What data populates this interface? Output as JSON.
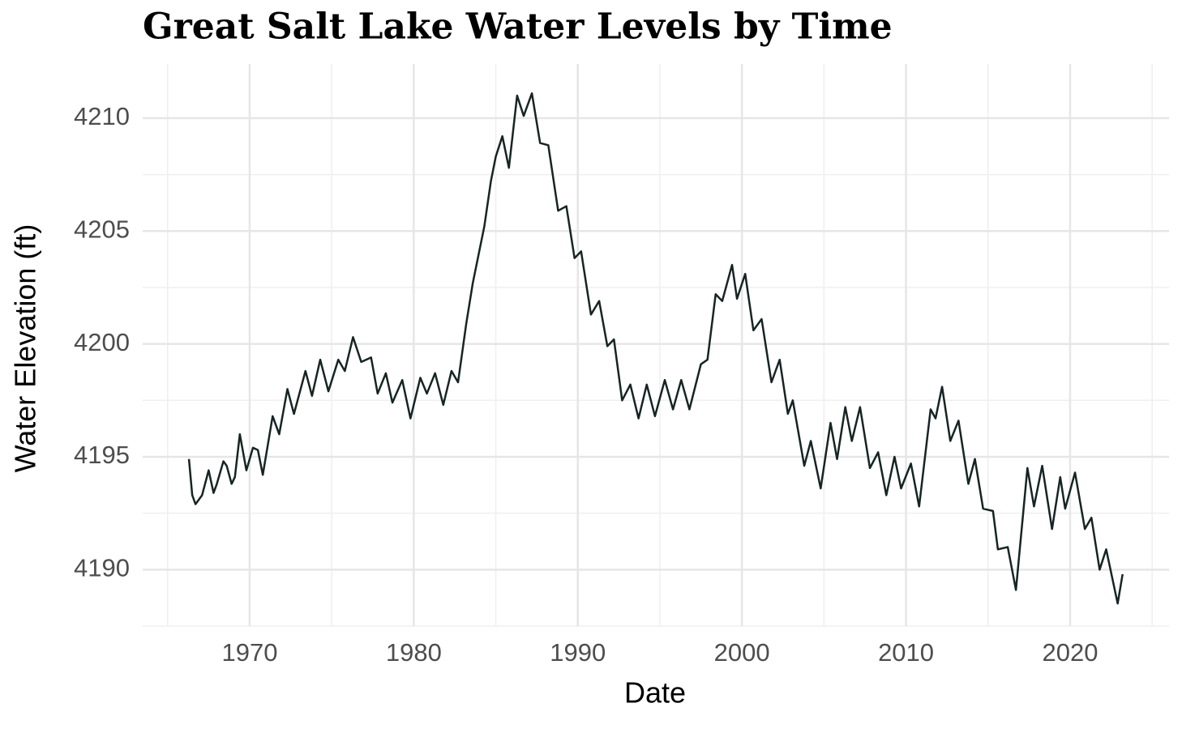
{
  "chart_data": {
    "type": "line",
    "title": "Great Salt Lake Water Levels by Time",
    "x_label": "Date",
    "y_label": "Water Elevation (ft)",
    "xlim": [
      1963.48,
      2026.03
    ],
    "ylim": [
      4187.5,
      4212.4
    ],
    "xticks": [
      1970,
      1980,
      1990,
      2000,
      2010,
      2020
    ],
    "yticks": [
      4190,
      4195,
      4200,
      4205,
      4210
    ],
    "x_minor_grid": [
      1965,
      1975,
      1985,
      1995,
      2005,
      2015,
      2025
    ],
    "y_minor_grid": [
      4187.5,
      4192.5,
      4197.5,
      4202.5,
      4207.5
    ],
    "grid": true,
    "series": [
      {
        "name": "Water Elevation",
        "color": "#162524",
        "x": [
          1966.3,
          1966.5,
          1966.7,
          1967.1,
          1967.5,
          1967.8,
          1968.0,
          1968.4,
          1968.6,
          1968.9,
          1969.1,
          1969.4,
          1969.8,
          1970.2,
          1970.5,
          1970.8,
          1971.1,
          1971.4,
          1971.8,
          1972.3,
          1972.7,
          1973.4,
          1973.8,
          1974.3,
          1974.8,
          1975.4,
          1975.8,
          1976.3,
          1976.8,
          1977.4,
          1977.8,
          1978.3,
          1978.7,
          1979.3,
          1979.8,
          1980.4,
          1980.8,
          1981.3,
          1981.8,
          1982.3,
          1982.7,
          1983.2,
          1983.6,
          1984.3,
          1984.7,
          1985.0,
          1985.4,
          1985.8,
          1986.3,
          1986.7,
          1987.2,
          1987.7,
          1988.2,
          1988.8,
          1989.3,
          1989.8,
          1990.2,
          1990.8,
          1991.3,
          1991.8,
          1992.2,
          1992.7,
          1993.2,
          1993.7,
          1994.2,
          1994.7,
          1995.3,
          1995.8,
          1996.3,
          1996.8,
          1997.5,
          1997.9,
          1998.4,
          1998.8,
          1999.4,
          1999.7,
          2000.2,
          2000.7,
          2001.2,
          2001.8,
          2002.3,
          2002.8,
          2003.1,
          2003.8,
          2004.2,
          2004.8,
          2005.4,
          2005.8,
          2006.3,
          2006.7,
          2007.2,
          2007.8,
          2008.3,
          2008.8,
          2009.3,
          2009.7,
          2010.3,
          2010.8,
          2011.5,
          2011.8,
          2012.2,
          2012.7,
          2013.2,
          2013.8,
          2014.2,
          2014.7,
          2015.3,
          2015.6,
          2016.2,
          2016.7,
          2017.4,
          2017.8,
          2018.3,
          2018.9,
          2019.4,
          2019.7,
          2020.3,
          2020.9,
          2021.3,
          2021.8,
          2022.2,
          2022.9,
          2023.2
        ],
        "values": [
          4194.9,
          4193.3,
          4192.9,
          4193.3,
          4194.4,
          4193.4,
          4193.8,
          4194.8,
          4194.6,
          4193.8,
          4194.1,
          4196.0,
          4194.4,
          4195.4,
          4195.3,
          4194.2,
          4195.5,
          4196.8,
          4196.0,
          4198.0,
          4196.9,
          4198.8,
          4197.7,
          4199.3,
          4197.9,
          4199.3,
          4198.8,
          4200.3,
          4199.2,
          4199.4,
          4197.8,
          4198.7,
          4197.4,
          4198.4,
          4196.7,
          4198.5,
          4197.8,
          4198.7,
          4197.3,
          4198.8,
          4198.3,
          4200.9,
          4202.7,
          4205.2,
          4207.2,
          4208.3,
          4209.2,
          4207.8,
          4211.0,
          4210.1,
          4211.1,
          4208.9,
          4208.8,
          4205.9,
          4206.1,
          4203.8,
          4204.1,
          4201.3,
          4201.9,
          4199.9,
          4200.2,
          4197.5,
          4198.2,
          4196.7,
          4198.2,
          4196.8,
          4198.4,
          4197.1,
          4198.4,
          4197.1,
          4199.1,
          4199.3,
          4202.2,
          4201.9,
          4203.5,
          4202.0,
          4203.1,
          4200.6,
          4201.1,
          4198.3,
          4199.3,
          4196.9,
          4197.5,
          4194.6,
          4195.7,
          4193.6,
          4196.5,
          4194.9,
          4197.2,
          4195.7,
          4197.2,
          4194.5,
          4195.2,
          4193.3,
          4195.0,
          4193.6,
          4194.7,
          4192.8,
          4197.1,
          4196.7,
          4198.1,
          4195.7,
          4196.6,
          4193.8,
          4194.9,
          4192.7,
          4192.6,
          4190.9,
          4191.0,
          4189.1,
          4194.5,
          4192.8,
          4194.6,
          4191.8,
          4194.1,
          4192.7,
          4194.3,
          4191.8,
          4192.3,
          4190.0,
          4190.9,
          4188.5,
          4189.8
        ]
      }
    ]
  }
}
